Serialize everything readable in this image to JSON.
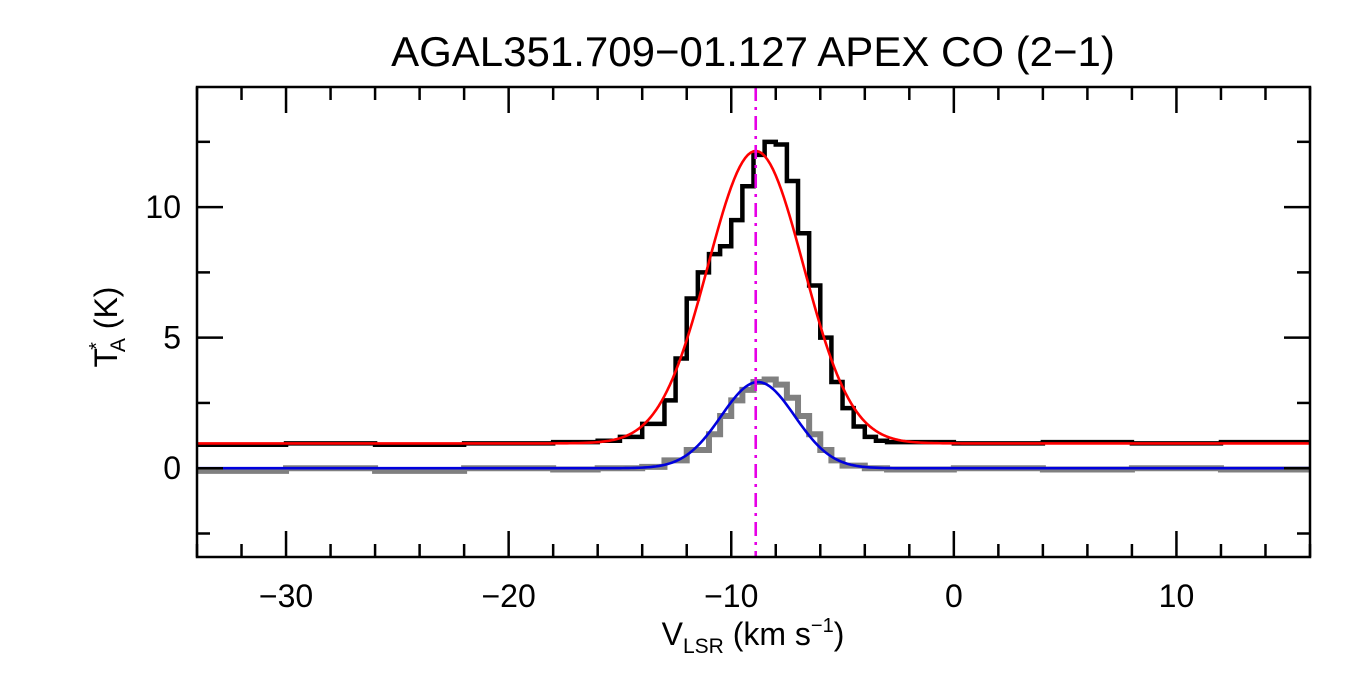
{
  "chart_data": {
    "type": "line",
    "title": "AGAL351.709−01.127  APEX CO (2−1)",
    "xlabel": {
      "main": "V",
      "sub": "LSR",
      "rest": " (km s",
      "sup": "−1",
      "end": ")"
    },
    "ylabel": {
      "main": "T",
      "sup": "*",
      "sub": "A",
      "rest": " (K)"
    },
    "xlim": [
      -34,
      16
    ],
    "ylim": [
      -3.4,
      14.6
    ],
    "xticks": [
      -30,
      -20,
      -10,
      0,
      10
    ],
    "xtick_labels": [
      "−30",
      "−20",
      "−10",
      "0",
      "10"
    ],
    "yticks": [
      0,
      5,
      10
    ],
    "ytick_labels": [
      "0",
      "5",
      "10"
    ],
    "grid": false,
    "colors": {
      "observed_12co": "#000000",
      "observed_13co": "#808080",
      "fit_12co": "#ff0000",
      "fit_13co": "#0000dd",
      "vlsr_marker": "#e600e6"
    },
    "vlsr_marker_x": -8.9,
    "series": [
      {
        "type": "step",
        "color": "#000000",
        "x": [
          -34,
          -30,
          -26,
          -22,
          -18,
          -16,
          -15,
          -14,
          -13,
          -12.5,
          -12,
          -11.5,
          -11,
          -10.5,
          -10,
          -9.5,
          -9,
          -8.5,
          -8,
          -7.5,
          -7,
          -6.5,
          -6,
          -5.5,
          -5,
          -4.5,
          -4,
          -3.5,
          -3,
          0,
          4,
          8,
          12,
          16
        ],
        "y": [
          0.9,
          0.95,
          0.9,
          0.95,
          1.0,
          1.05,
          1.2,
          1.7,
          2.6,
          4.2,
          6.5,
          7.5,
          8.2,
          8.5,
          9.5,
          10.8,
          12.0,
          12.5,
          12.4,
          11.0,
          9.0,
          7.0,
          5.0,
          3.3,
          2.3,
          1.6,
          1.2,
          1.05,
          1.0,
          0.95,
          1.0,
          0.95,
          1.0,
          0.95
        ]
      },
      {
        "type": "step",
        "color": "#808080",
        "x": [
          -34,
          -30,
          -26,
          -22,
          -18,
          -16,
          -14,
          -13,
          -12,
          -11,
          -10.5,
          -10,
          -9.5,
          -9,
          -8.5,
          -8,
          -7.5,
          -7,
          -6.5,
          -6,
          -5.5,
          -5,
          -4,
          -3,
          0,
          4,
          8,
          12,
          16
        ],
        "y": [
          -0.1,
          0.0,
          -0.1,
          0.0,
          -0.05,
          0.0,
          0.05,
          0.3,
          0.7,
          1.3,
          2.0,
          2.6,
          3.0,
          3.3,
          3.4,
          3.2,
          2.7,
          2.0,
          1.3,
          0.7,
          0.3,
          0.1,
          0.0,
          -0.05,
          0.0,
          -0.05,
          0.0,
          -0.05,
          0.0
        ]
      },
      {
        "type": "gaussian",
        "color": "#ff0000",
        "amplitude": 11.2,
        "center": -8.9,
        "sigma": 2.15,
        "baseline": 0.95
      },
      {
        "type": "gaussian",
        "color": "#0000dd",
        "amplitude": 3.3,
        "center": -8.8,
        "sigma": 1.65,
        "baseline": 0.0
      }
    ]
  }
}
